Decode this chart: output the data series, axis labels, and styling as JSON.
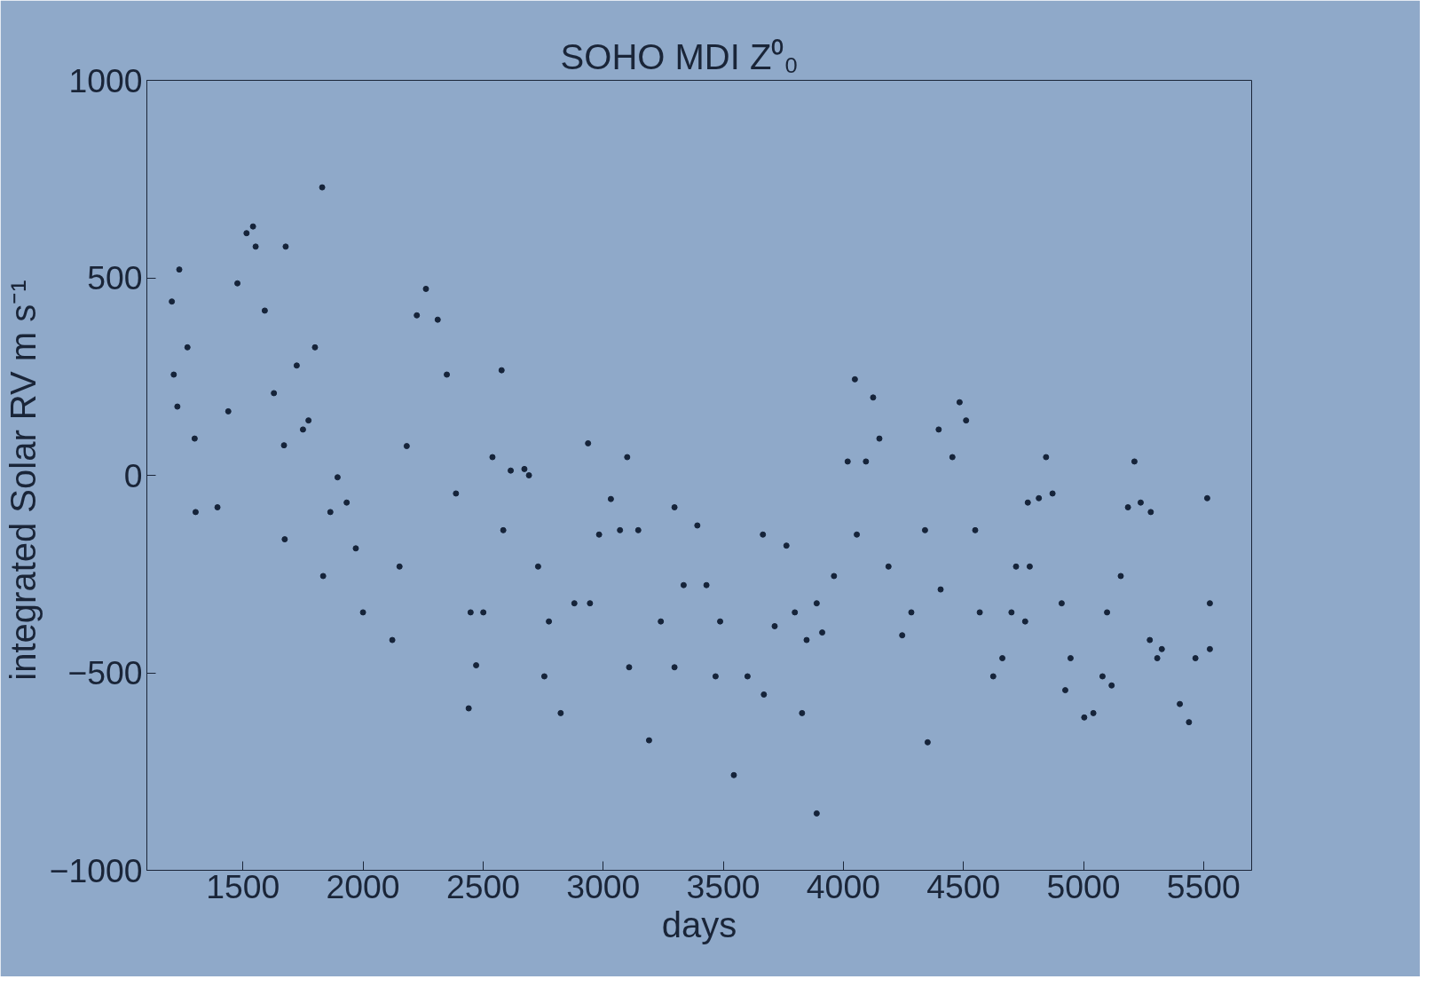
{
  "chart_data": {
    "type": "scatter",
    "title": "SOHO MDI     Z⁰₀",
    "xlabel": "days",
    "ylabel": "integrated Solar RV  m s⁻¹",
    "xlim": [
      1100,
      5700
    ],
    "ylim": [
      -1000,
      1000
    ],
    "xticks": [
      1500,
      2000,
      2500,
      3000,
      3500,
      4000,
      4500,
      5000,
      5500
    ],
    "yticks": [
      -1000,
      -500,
      0,
      500,
      1000
    ],
    "grid": false,
    "marker": "circle",
    "series": [
      {
        "color": "#16243a",
        "x": [
          1204,
          1212,
          1227,
          1235,
          1269,
          1303,
          1394,
          1439,
          1477,
          1515,
          1542,
          1553,
          1591,
          1629,
          1674,
          1678,
          1724,
          1750,
          1773,
          1800,
          1830,
          1834,
          1864,
          1894,
          1932,
          1970,
          2000,
          2122,
          2152,
          2182,
          2224,
          2262,
          2311,
          2349,
          2387,
          2440,
          2448,
          2471,
          2501,
          2539,
          2577,
          2584,
          2615,
          2672,
          2691,
          2729,
          2755,
          2774,
          2823,
          2880,
          2937,
          2945,
          2983,
          3032,
          3070,
          3100,
          3108,
          3146,
          3191,
          3240,
          3297,
          3297,
          3335,
          3392,
          3430,
          3468,
          3487,
          3544,
          3601,
          3665,
          3669,
          3714,
          3763,
          3798,
          3828,
          3847,
          3889,
          3889,
          3912,
          3961,
          4018,
          4048,
          4056,
          4094,
          4124,
          4150,
          4188,
          4245,
          4283,
          4340,
          4397,
          4405,
          4454,
          4484,
          4511,
          4549,
          4568,
          4624,
          4662,
          4700,
          4719,
          4757,
          4768,
          4776,
          4814,
          4844,
          4871,
          4909,
          4924,
          4946,
          5003,
          5041,
          5079,
          5098,
          5117,
          5155,
          5185,
          5212,
          5238,
          5276,
          5280,
          5307,
          5326,
          5401,
          5439,
          5466,
          5515,
          5526,
          5526,
          4351,
          1299,
          1671
        ],
        "values": [
          440,
          255,
          174,
          521,
          324,
          -93,
          -81,
          162,
          486,
          613,
          630,
          579,
          417,
          208,
          -162,
          579,
          278,
          116,
          139,
          324,
          729,
          -255,
          -93,
          -5,
          -69,
          -185,
          -347,
          -417,
          -231,
          74,
          405,
          472,
          394,
          255,
          -46,
          -590,
          -347,
          -481,
          -347,
          46,
          266,
          -139,
          12,
          16,
          0,
          -231,
          -509,
          -370,
          -602,
          -324,
          81,
          -324,
          -150,
          -60,
          -139,
          46,
          -486,
          -139,
          -671,
          -370,
          -81,
          -486,
          -278,
          -127,
          -278,
          -509,
          -370,
          -759,
          -509,
          -150,
          -555,
          -382,
          -178,
          -347,
          -602,
          -417,
          -856,
          -324,
          -398,
          -255,
          35,
          243,
          -150,
          35,
          197,
          93,
          -231,
          -405,
          -347,
          -139,
          116,
          -289,
          46,
          185,
          139,
          -139,
          -347,
          -509,
          -463,
          -347,
          -231,
          -370,
          -69,
          -231,
          -58,
          46,
          -46,
          -324,
          -544,
          -463,
          -613,
          -602,
          -509,
          -347,
          -532,
          -255,
          -81,
          35,
          -69,
          -417,
          -93,
          -463,
          -440,
          -579,
          -625,
          -463,
          -58,
          -440,
          -324,
          -676,
          93,
          76
        ]
      }
    ]
  }
}
